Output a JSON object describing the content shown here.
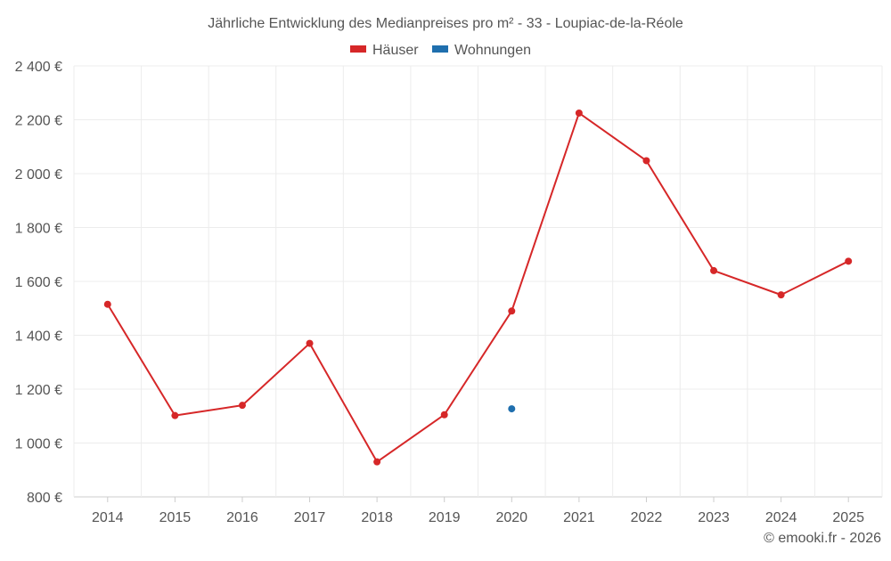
{
  "chart_data": {
    "type": "line",
    "title": "Jährliche Entwicklung des Medianpreises pro m² - 33 - Loupiac-de-la-Réole",
    "xlabel": "",
    "ylabel": "",
    "categories": [
      "2014",
      "2015",
      "2016",
      "2017",
      "2018",
      "2019",
      "2020",
      "2021",
      "2022",
      "2023",
      "2024",
      "2025"
    ],
    "series": [
      {
        "name": "Häuser",
        "color": "#d62728",
        "values": [
          1515,
          1102,
          1140,
          1370,
          930,
          1105,
          1490,
          2225,
          2048,
          1640,
          1550,
          1675
        ]
      },
      {
        "name": "Wohnungen",
        "color": "#1f6fae",
        "values": [
          null,
          null,
          null,
          null,
          null,
          null,
          1127,
          null,
          null,
          null,
          null,
          null
        ]
      }
    ],
    "ylim": [
      800,
      2400
    ],
    "yticks": [
      800,
      1000,
      1200,
      1400,
      1600,
      1800,
      2000,
      2200,
      2400
    ],
    "ytick_labels": [
      "800 €",
      "1 000 €",
      "1 200 €",
      "1 400 €",
      "1 600 €",
      "1 800 €",
      "2 000 €",
      "2 200 €",
      "2 400 €"
    ],
    "grid": true,
    "legend_position": "top-center"
  },
  "credit": "© emooki.fr - 2026"
}
